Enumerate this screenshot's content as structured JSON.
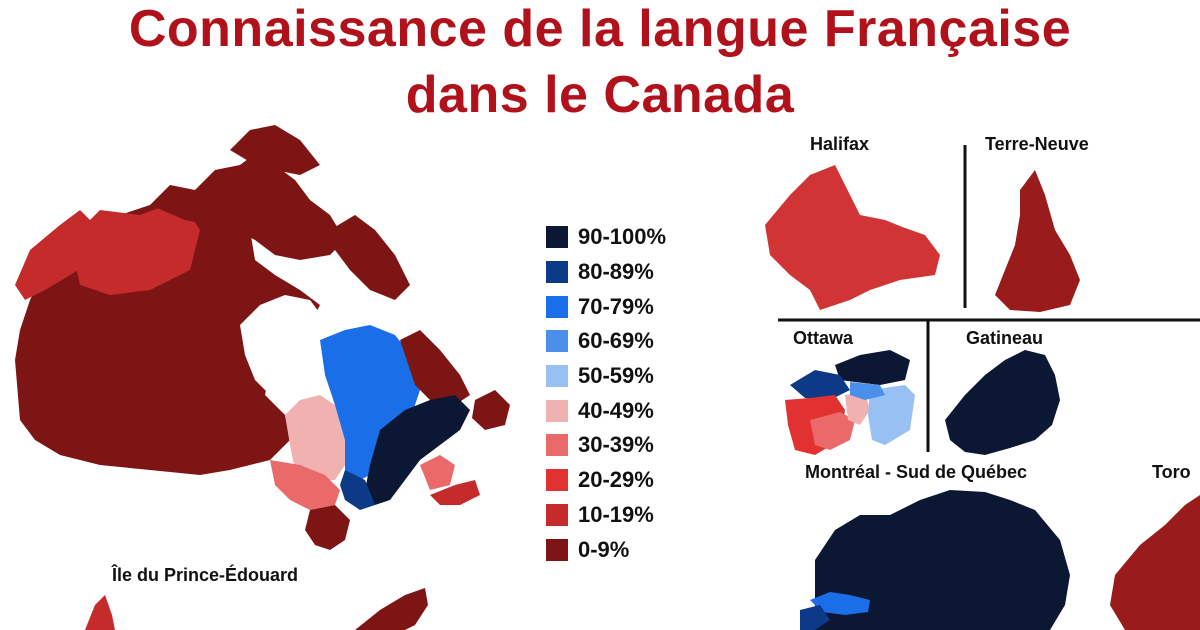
{
  "title": {
    "line1": "Connaissance de la langue Française",
    "line2": "dans le Canada"
  },
  "legend": [
    {
      "label": "90-100%",
      "color": "#0b1733"
    },
    {
      "label": "80-89%",
      "color": "#0d3a86"
    },
    {
      "label": "70-79%",
      "color": "#1a6fe8"
    },
    {
      "label": "60-69%",
      "color": "#4a8fe9"
    },
    {
      "label": "50-59%",
      "color": "#98c0f2"
    },
    {
      "label": "40-49%",
      "color": "#f0b1b1"
    },
    {
      "label": "30-39%",
      "color": "#ea6a6a"
    },
    {
      "label": "20-29%",
      "color": "#e23131"
    },
    {
      "label": "10-19%",
      "color": "#c52b2b"
    },
    {
      "label": "0-9%",
      "color": "#7e1515"
    }
  ],
  "insets": {
    "halifax": "Halifax",
    "terre_neuve": "Terre-Neuve",
    "ottawa": "Ottawa",
    "gatineau": "Gatineau",
    "montreal": "Montréal - Sud de Québec",
    "toronto": "Toro",
    "pei": "Île du Prince-Édouard"
  },
  "colors": {
    "title": "#b0111a",
    "quebec_interior": "#1a6fe8",
    "quebec_east": "#0b1733",
    "ontario_north": "#f0b1b1",
    "maritimes": "#c52b2b",
    "west": "#7e1515"
  }
}
